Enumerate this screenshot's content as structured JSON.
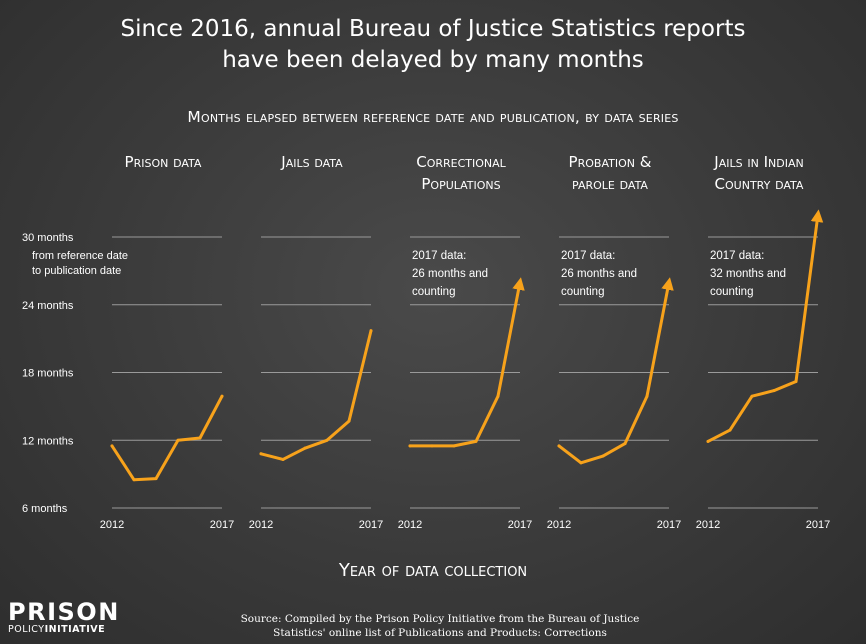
{
  "title_line1": "Since 2016, annual Bureau of Justice Statistics reports",
  "title_line2": "have been delayed by many months",
  "subtitle": "Months elapsed between reference date and publication, by data series",
  "xaxis_title": "Year of data collection",
  "source_line1": "Source: Compiled by the Prison Policy Initiative from the Bureau of Justice",
  "source_line2": "Statistics' online list of Publications and Products: Corrections",
  "logo": {
    "top": "PRISON",
    "bottom_a": "POLICY",
    "bottom_b": "INITIATIVE"
  },
  "colors": {
    "line": "#f7a21b",
    "grid": "#9a9a9a",
    "text": "#ffffff"
  },
  "chart_data": {
    "type": "line",
    "ylim": [
      6,
      30
    ],
    "yticks": [
      6,
      12,
      18,
      24,
      30
    ],
    "ytick_labels": [
      "6 months",
      "12 months",
      "18 months",
      "24 months",
      "30 months"
    ],
    "y_axis_note": [
      "from reference date",
      "to publication date"
    ],
    "xlim": [
      2012,
      2017
    ],
    "xtick_labels": [
      "2012",
      "2017"
    ],
    "grid": true,
    "panels": [
      {
        "title": [
          "Prison data"
        ],
        "x": [
          2012,
          2013,
          2014,
          2015,
          2016,
          2017
        ],
        "values": [
          11.5,
          8.5,
          8.6,
          12,
          12.2,
          15.9
        ],
        "arrow": false,
        "annotation": []
      },
      {
        "title": [
          "Jails data"
        ],
        "x": [
          2012,
          2013,
          2014,
          2015,
          2016,
          2017
        ],
        "values": [
          10.8,
          10.3,
          11.3,
          12,
          13.7,
          21.7
        ],
        "arrow": false,
        "annotation": []
      },
      {
        "title": [
          "Correctional",
          "Populations"
        ],
        "x": [
          2012,
          2013,
          2014,
          2015,
          2016,
          2017
        ],
        "values": [
          11.5,
          11.5,
          11.5,
          11.9,
          15.9,
          26
        ],
        "arrow": true,
        "annotation": [
          "2017 data:",
          "26 months and",
          "counting"
        ]
      },
      {
        "title": [
          "Probation &",
          "parole data"
        ],
        "x": [
          2012,
          2013,
          2014,
          2015,
          2016,
          2017
        ],
        "values": [
          11.5,
          10,
          10.6,
          11.7,
          15.9,
          26
        ],
        "arrow": true,
        "annotation": [
          "2017 data:",
          "26 months and",
          "counting"
        ]
      },
      {
        "title": [
          "Jails in Indian",
          "Country data"
        ],
        "x": [
          2012,
          2013,
          2014,
          2015,
          2016,
          2017
        ],
        "values": [
          11.9,
          12.9,
          15.9,
          16.4,
          17.2,
          32
        ],
        "arrow": true,
        "annotation": [
          "2017 data:",
          "32 months and",
          "counting"
        ]
      }
    ]
  }
}
